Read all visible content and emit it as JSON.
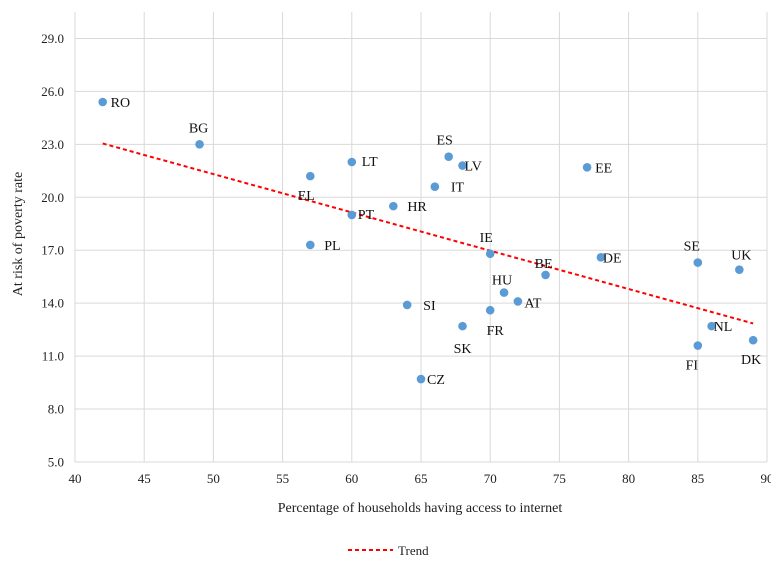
{
  "chart_data": {
    "type": "scatter",
    "xlabel": "Percentage of households having access to internet",
    "ylabel": "At risk of poverty rate",
    "xlim": [
      40,
      90
    ],
    "ylim": [
      5,
      30.5
    ],
    "x_ticks": [
      "40",
      "45",
      "50",
      "55",
      "60",
      "65",
      "70",
      "75",
      "80",
      "85",
      "90"
    ],
    "y_ticks": [
      "5.0",
      "8.0",
      "11.0",
      "14.0",
      "17.0",
      "20.0",
      "23.0",
      "26.0",
      "29.0"
    ],
    "grid": true,
    "legend_position": "bottom",
    "point_color": "#5b9bd5",
    "trend_color": "#ff0000",
    "series": [
      {
        "type": "scatter",
        "points": [
          {
            "label": "RO",
            "x": 42,
            "y": 25.4
          },
          {
            "label": "BG",
            "x": 49,
            "y": 23.0
          },
          {
            "label": "EL",
            "x": 57,
            "y": 21.2
          },
          {
            "label": "PL",
            "x": 57,
            "y": 17.3
          },
          {
            "label": "LT",
            "x": 60,
            "y": 22.0
          },
          {
            "label": "PT",
            "x": 60,
            "y": 19.0
          },
          {
            "label": "HR",
            "x": 63,
            "y": 19.5
          },
          {
            "label": "SI",
            "x": 64,
            "y": 13.9
          },
          {
            "label": "CZ",
            "x": 65,
            "y": 9.7
          },
          {
            "label": "IT",
            "x": 66,
            "y": 20.6
          },
          {
            "label": "ES",
            "x": 67,
            "y": 22.3
          },
          {
            "label": "LV",
            "x": 68,
            "y": 21.8
          },
          {
            "label": "SK",
            "x": 68,
            "y": 12.7
          },
          {
            "label": "IE",
            "x": 70,
            "y": 16.8
          },
          {
            "label": "FR",
            "x": 70,
            "y": 13.6
          },
          {
            "label": "HU",
            "x": 71,
            "y": 14.6
          },
          {
            "label": "AT",
            "x": 72,
            "y": 14.1
          },
          {
            "label": "BE",
            "x": 74,
            "y": 15.6
          },
          {
            "label": "EE",
            "x": 77,
            "y": 21.7
          },
          {
            "label": "DE",
            "x": 78,
            "y": 16.6
          },
          {
            "label": "SE",
            "x": 85,
            "y": 16.3
          },
          {
            "label": "FI",
            "x": 85,
            "y": 11.6
          },
          {
            "label": "NL",
            "x": 86,
            "y": 12.7
          },
          {
            "label": "UK",
            "x": 88,
            "y": 15.9
          },
          {
            "label": "DK",
            "x": 89,
            "y": 11.9
          }
        ]
      },
      {
        "type": "line",
        "name": "Trend",
        "style": "dashed",
        "x": [
          42,
          89
        ],
        "y": [
          23.05,
          12.85
        ]
      }
    ]
  }
}
